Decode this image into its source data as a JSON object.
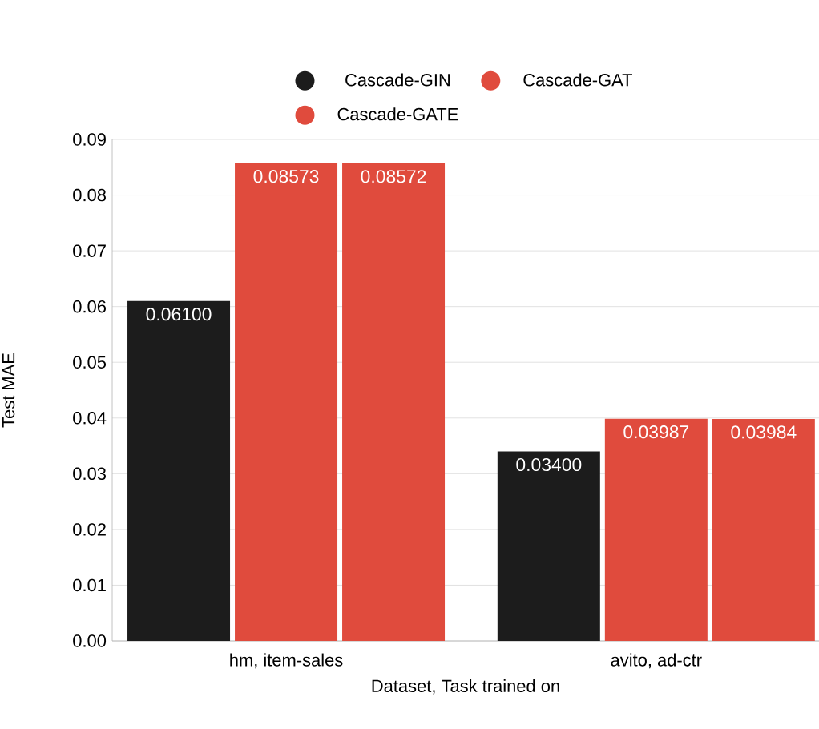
{
  "chart_data": {
    "type": "bar",
    "xlabel": "Dataset, Task trained on",
    "ylabel": "Test MAE",
    "categories": [
      "hm, item-sales",
      "avito, ad-ctr"
    ],
    "series": [
      {
        "name": "Cascade-GIN",
        "color": "#1c1c1c",
        "values": [
          0.061,
          0.034
        ],
        "value_labels": [
          "0.06100",
          "0.03400"
        ]
      },
      {
        "name": "Cascade-GAT",
        "color": "#e04b3d",
        "values": [
          0.08573,
          0.03987
        ],
        "value_labels": [
          "0.08573",
          "0.03987"
        ]
      },
      {
        "name": "Cascade-GATE",
        "color": "#e04b3d",
        "values": [
          0.08572,
          0.03984
        ],
        "value_labels": [
          "0.08572",
          "0.03984"
        ]
      }
    ],
    "ylim": [
      0,
      0.09
    ],
    "yticks": [
      {
        "value": 0,
        "label": "0.00"
      },
      {
        "value": 0.01,
        "label": "0.01"
      },
      {
        "value": 0.02,
        "label": "0.02"
      },
      {
        "value": 0.03,
        "label": "0.03"
      },
      {
        "value": 0.04,
        "label": "0.04"
      },
      {
        "value": 0.05,
        "label": "0.05"
      },
      {
        "value": 0.06,
        "label": "0.06"
      },
      {
        "value": 0.07,
        "label": "0.07"
      },
      {
        "value": 0.08,
        "label": "0.08"
      },
      {
        "value": 0.09,
        "label": "0.09"
      }
    ],
    "grid": "y",
    "legend": "top"
  }
}
